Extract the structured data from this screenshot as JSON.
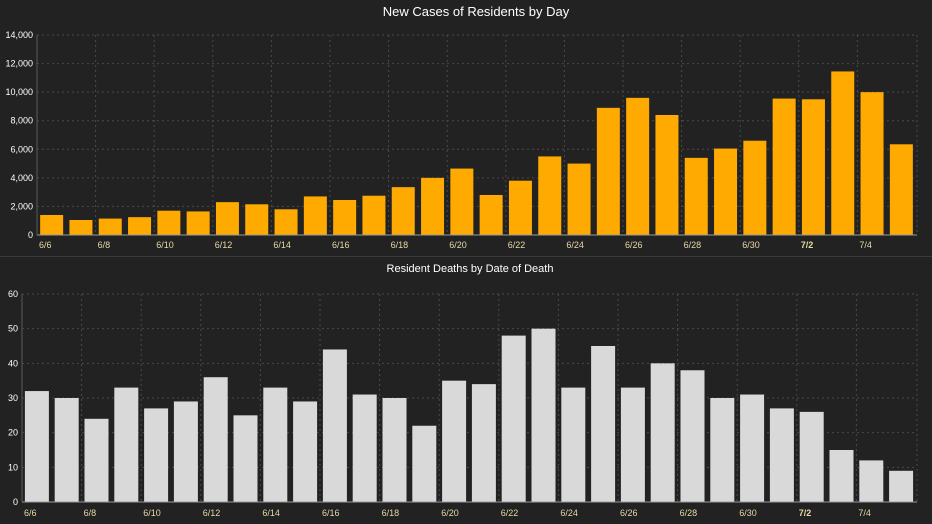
{
  "colors": {
    "background": "#222222",
    "cases_bar": "#FFAA00",
    "deaths_bar": "#D9D9D9",
    "title_text": "#FFFFFF",
    "tick_text": "#FFFFFF",
    "x_tick_text": "#E8D9A8",
    "grid": "#4a4a4a"
  },
  "chart_data": [
    {
      "type": "bar",
      "title": "New Cases of Residents by Day",
      "xlabel": "",
      "ylabel": "",
      "ylim": [
        0,
        14000
      ],
      "y_ticks": [
        "0",
        "2,000",
        "4,000",
        "6,000",
        "8,000",
        "10,000",
        "12,000",
        "14,000"
      ],
      "grid": true,
      "categories": [
        "6/6",
        "6/7",
        "6/8",
        "6/9",
        "6/10",
        "6/11",
        "6/12",
        "6/13",
        "6/14",
        "6/15",
        "6/16",
        "6/17",
        "6/18",
        "6/19",
        "6/20",
        "6/21",
        "6/22",
        "6/23",
        "6/24",
        "6/25",
        "6/26",
        "6/27",
        "6/28",
        "6/29",
        "6/30",
        "7/1",
        "7/2",
        "7/3",
        "7/4",
        "7/5"
      ],
      "x_tick_labels": [
        "6/6",
        "",
        "6/8",
        "",
        "6/10",
        "",
        "6/12",
        "",
        "6/14",
        "",
        "6/16",
        "",
        "6/18",
        "",
        "6/20",
        "",
        "6/22",
        "",
        "6/24",
        "",
        "6/26",
        "",
        "6/28",
        "",
        "6/30",
        "",
        "7/2",
        "",
        "7/4",
        ""
      ],
      "values": [
        1400,
        1050,
        1150,
        1250,
        1700,
        1650,
        2300,
        2150,
        1800,
        2700,
        2450,
        2750,
        3350,
        4000,
        4650,
        2800,
        3800,
        5500,
        5000,
        8900,
        9600,
        8400,
        5400,
        6050,
        6600,
        9550,
        9500,
        11450,
        10000,
        6350
      ]
    },
    {
      "type": "bar",
      "title": "Resident Deaths by Date of Death",
      "xlabel": "",
      "ylabel": "",
      "ylim": [
        0,
        60
      ],
      "y_ticks": [
        "0",
        "10",
        "20",
        "30",
        "40",
        "50",
        "60"
      ],
      "grid": true,
      "categories": [
        "6/6",
        "6/7",
        "6/8",
        "6/9",
        "6/10",
        "6/11",
        "6/12",
        "6/13",
        "6/14",
        "6/15",
        "6/16",
        "6/17",
        "6/18",
        "6/19",
        "6/20",
        "6/21",
        "6/22",
        "6/23",
        "6/24",
        "6/25",
        "6/26",
        "6/27",
        "6/28",
        "6/29",
        "6/30",
        "7/1",
        "7/2",
        "7/3",
        "7/4",
        "7/5"
      ],
      "x_tick_labels": [
        "6/6",
        "",
        "6/8",
        "",
        "6/10",
        "",
        "6/12",
        "",
        "6/14",
        "",
        "6/16",
        "",
        "6/18",
        "",
        "6/20",
        "",
        "6/22",
        "",
        "6/24",
        "",
        "6/26",
        "",
        "6/28",
        "",
        "6/30",
        "",
        "7/2",
        "",
        "7/4",
        ""
      ],
      "values": [
        32,
        30,
        24,
        33,
        27,
        29,
        36,
        25,
        33,
        29,
        44,
        31,
        30,
        22,
        35,
        34,
        48,
        50,
        33,
        45,
        33,
        40,
        38,
        30,
        31,
        27,
        26,
        15,
        12,
        9
      ]
    }
  ]
}
